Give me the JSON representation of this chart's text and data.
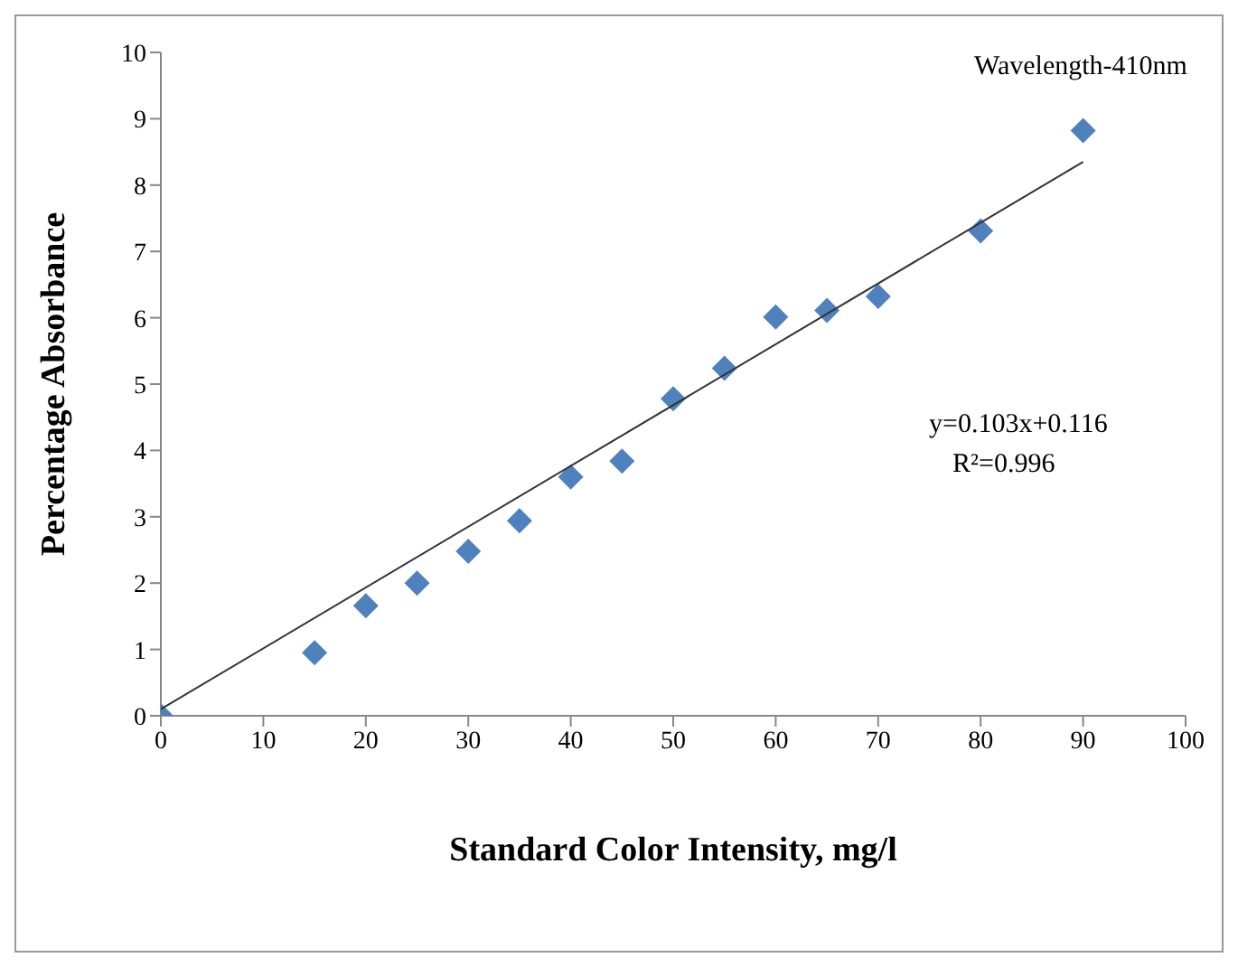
{
  "chart_data": {
    "type": "scatter",
    "xlabel": "Standard Color Intensity, mg/l",
    "ylabel": "Percentage Absorbance",
    "xlim": [
      0,
      100
    ],
    "xticks": [
      0,
      10,
      20,
      30,
      40,
      50,
      60,
      70,
      80,
      90,
      100
    ],
    "ylim": [
      0,
      10
    ],
    "yticks": [
      0,
      1,
      2,
      3,
      4,
      5,
      6,
      7,
      8,
      9,
      10
    ],
    "marker": "diamond",
    "annotations": [
      "Wavelength-410nm",
      "y=0.103x+0.116",
      "R²=0.996"
    ],
    "series": [
      {
        "color": "#4f81bd",
        "x": [
          0,
          15,
          20,
          25,
          30,
          35,
          40,
          45,
          50,
          55,
          60,
          65,
          70,
          80,
          90
        ],
        "values": [
          0,
          0.95,
          1.66,
          2.0,
          2.48,
          2.94,
          3.6,
          3.84,
          4.78,
          5.24,
          6.01,
          6.11,
          6.32,
          7.31,
          8.82
        ]
      },
      {
        "type": "line",
        "color": "#333333",
        "marker": "none",
        "x": [
          0,
          90
        ],
        "values": [
          0.1,
          8.35
        ]
      }
    ]
  }
}
